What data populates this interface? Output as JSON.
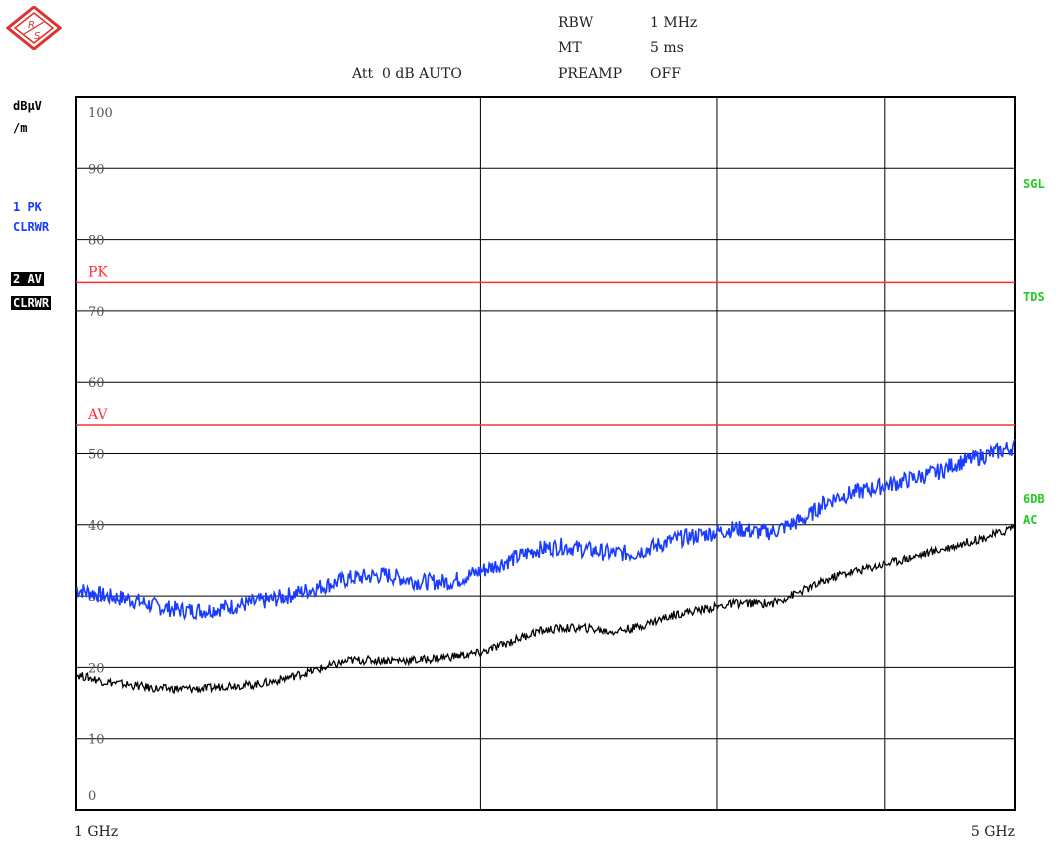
{
  "header": {
    "rbw_label": "RBW",
    "rbw_value": "1 MHz",
    "mt_label": "MT",
    "mt_value": "5 ms",
    "att": "Att  0 dB AUTO",
    "preamp_label": "PREAMP",
    "preamp_value": "OFF"
  },
  "left_labels": {
    "unit_line1": "dBµV",
    "unit_line2": "/m",
    "trace1_line1": "1 PK",
    "trace1_line2": "CLRWR",
    "trace2_line1": "2 AV",
    "trace2_line2": "CLRWR"
  },
  "right_labels": {
    "sgl": "SGL",
    "tds": "TDS",
    "sixdb": "6DB",
    "ac": "AC"
  },
  "colors": {
    "trace_pk": "#1a3cff",
    "trace_av": "#000000",
    "limit_line": "#ff3030",
    "status_green": "#22cc22",
    "grid": "#000000"
  },
  "chart_data": {
    "type": "line",
    "xlabel": "",
    "ylabel": "dBµV/m",
    "xlim": [
      1,
      5
    ],
    "ylim": [
      0,
      100
    ],
    "x_scale": "log",
    "x_tick_labels": [
      "1 GHz",
      "5 GHz"
    ],
    "y_ticks": [
      0,
      10,
      20,
      30,
      40,
      50,
      60,
      70,
      80,
      90,
      100
    ],
    "y_tick_labels": [
      "0",
      "10",
      "20",
      "30",
      "40",
      "50",
      "60",
      "70",
      "80",
      "90",
      "100"
    ],
    "vertical_gridlines": [
      2,
      3,
      4
    ],
    "grid": true,
    "limit_lines": [
      {
        "name": "PK",
        "value": 74
      },
      {
        "name": "AV",
        "value": 54
      }
    ],
    "series": [
      {
        "x": [
          1.0,
          1.05,
          1.1,
          1.15,
          1.2,
          1.25,
          1.3,
          1.35,
          1.4,
          1.5,
          1.6,
          1.7,
          1.8,
          1.9,
          2.0,
          2.1,
          2.2,
          2.3,
          2.4,
          2.5,
          2.6,
          2.7,
          2.8,
          2.9,
          3.0,
          3.1,
          3.2,
          3.3,
          3.4,
          3.5,
          3.6,
          3.7,
          3.8,
          3.9,
          4.0,
          4.1,
          4.2,
          4.3,
          4.4,
          4.5,
          4.6,
          4.7,
          4.8,
          4.9,
          5.0
        ],
        "values": [
          31,
          30,
          29.5,
          28.5,
          28,
          28,
          28.5,
          29,
          29.5,
          31,
          32.5,
          33,
          32,
          32,
          33.5,
          35,
          36.5,
          37,
          36.5,
          36,
          36,
          37,
          38,
          38.5,
          39,
          39.5,
          39,
          39,
          40,
          41,
          43,
          44,
          44.5,
          45,
          45.5,
          46,
          46.5,
          47,
          47.5,
          48.5,
          49,
          49.5,
          50,
          50.5,
          51
        ]
      },
      {
        "x": [
          1.0,
          1.05,
          1.1,
          1.15,
          1.2,
          1.25,
          1.3,
          1.35,
          1.4,
          1.5,
          1.6,
          1.7,
          1.8,
          1.9,
          2.0,
          2.1,
          2.2,
          2.3,
          2.4,
          2.5,
          2.6,
          2.7,
          2.8,
          2.9,
          3.0,
          3.1,
          3.2,
          3.3,
          3.4,
          3.5,
          3.6,
          3.7,
          3.8,
          3.9,
          4.0,
          4.1,
          4.2,
          4.3,
          4.4,
          4.5,
          4.6,
          4.7,
          4.8,
          4.9,
          5.0
        ],
        "values": [
          19,
          18,
          17.5,
          17,
          17,
          17,
          17.5,
          17.5,
          18,
          19.5,
          21,
          21,
          21,
          21.5,
          22,
          23.5,
          25,
          25.5,
          25.5,
          25,
          25.5,
          26.5,
          27.5,
          28,
          28.5,
          29,
          29,
          29,
          30,
          31,
          32,
          33,
          33.5,
          34,
          34.5,
          35,
          35.5,
          36,
          36.5,
          37,
          37.5,
          38,
          38.5,
          39,
          40
        ]
      }
    ]
  }
}
